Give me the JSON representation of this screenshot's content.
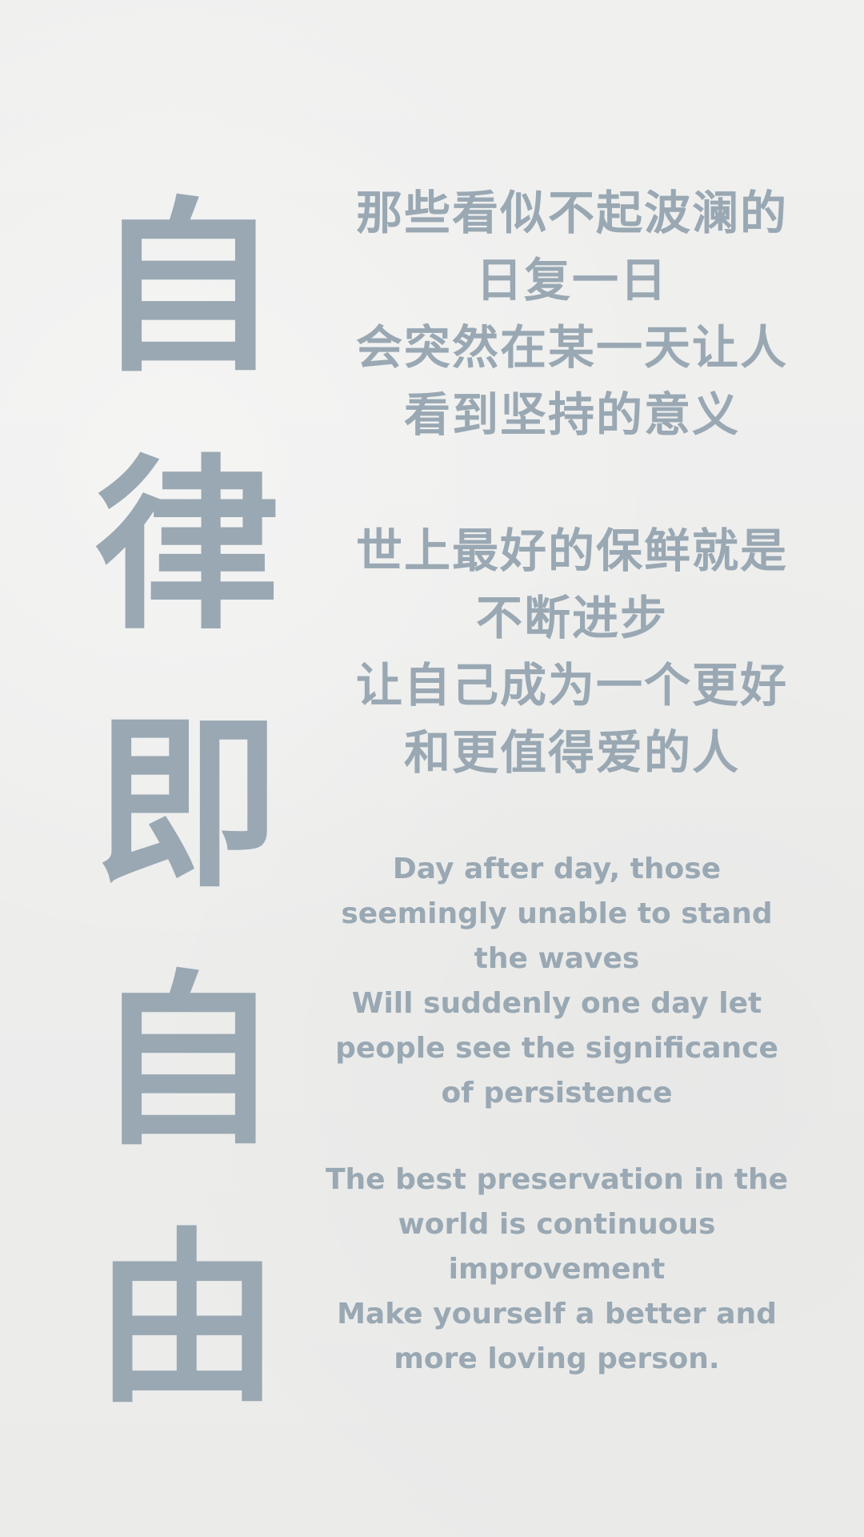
{
  "title": {
    "chars": [
      "自",
      "律",
      "即",
      "自",
      "由"
    ]
  },
  "chinese": {
    "paragraph1": [
      "那些看似不起波澜的",
      "日复一日",
      "会突然在某一天让人",
      "看到坚持的意义"
    ],
    "paragraph2": [
      "世上最好的保鲜就是",
      "不断进步",
      "让自己成为一个更好",
      "和更值得爱的人"
    ]
  },
  "english": {
    "paragraph1": [
      "Day after day, those",
      "seemingly unable to stand",
      "the waves",
      "Will suddenly one day let",
      "people see the significance",
      "of persistence"
    ],
    "paragraph2": [
      "The best preservation in the",
      "world is continuous",
      "improvement",
      "Make yourself a better and",
      "more loving person."
    ]
  },
  "colors": {
    "text": "#99a8b3",
    "background": "#eeeeed"
  }
}
